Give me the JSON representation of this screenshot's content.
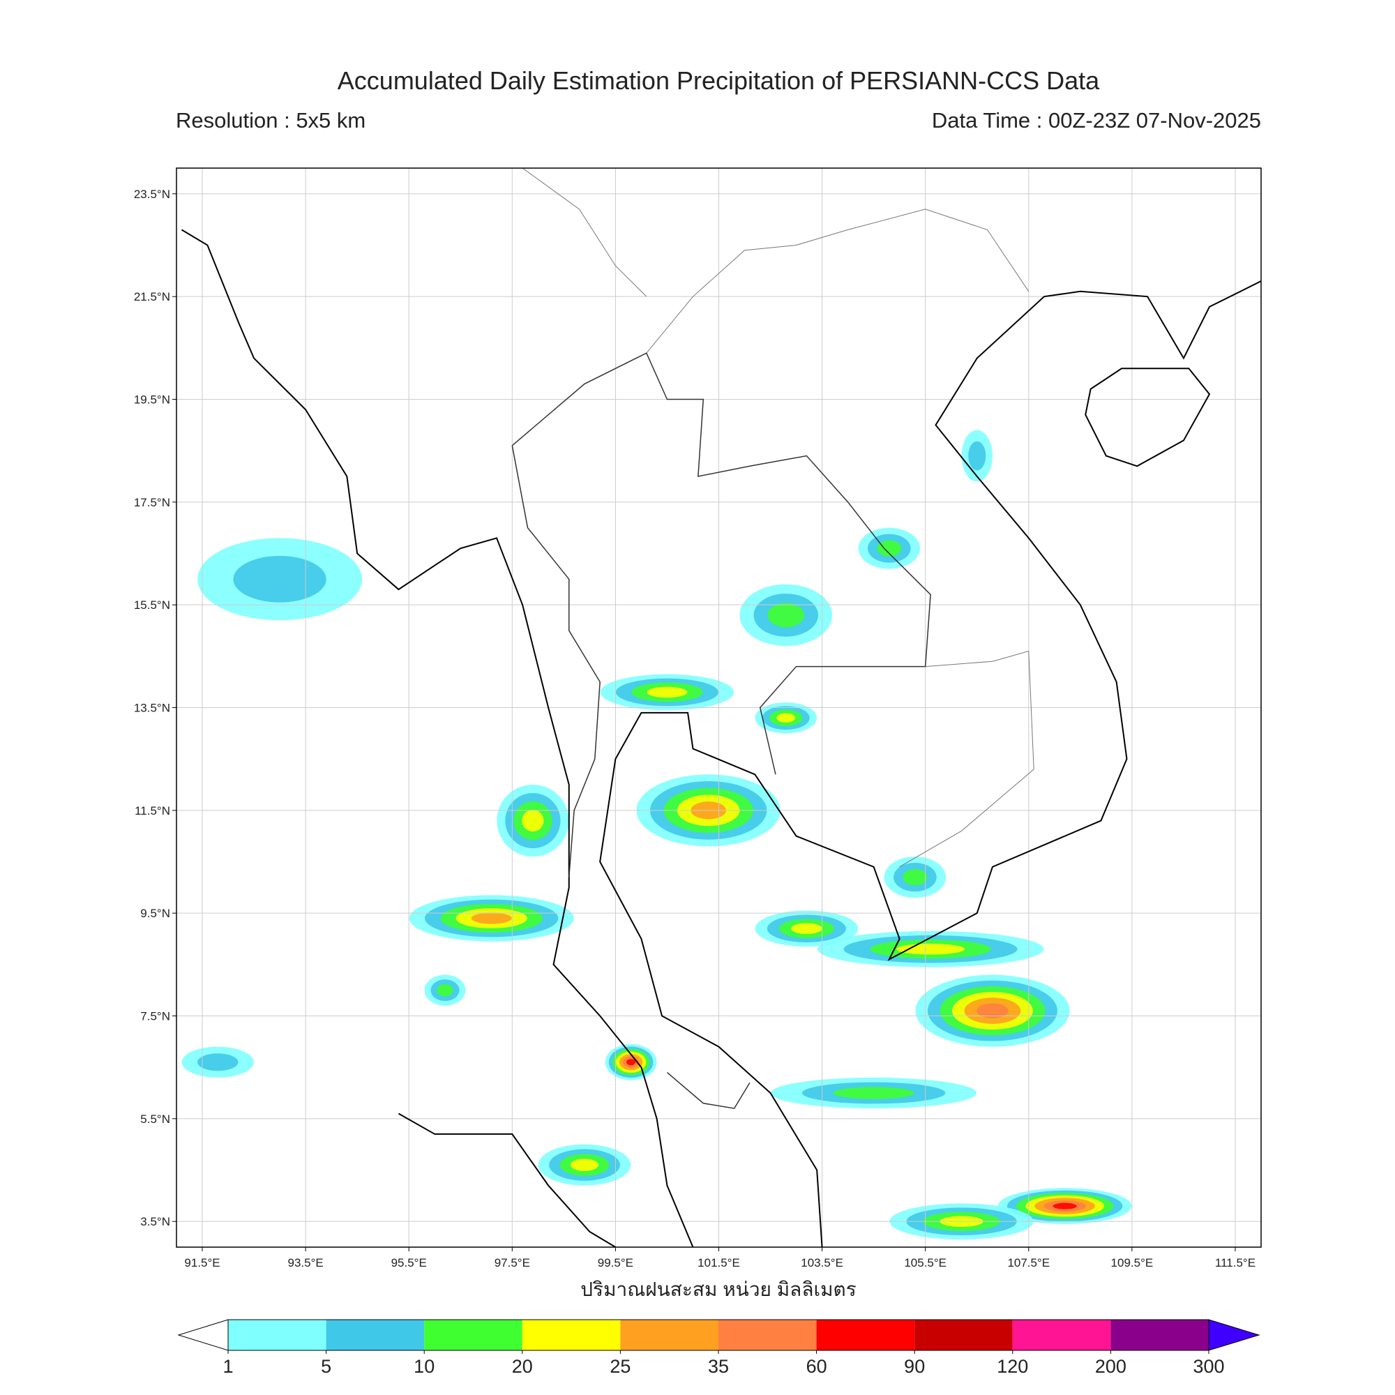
{
  "title": "Accumulated Daily Estimation Precipitation of PERSIANN-CCS Data",
  "resolution": "Resolution : 5x5 km",
  "data_time": "Data Time : 00Z-23Z 07-Nov-2025",
  "map": {
    "lonlim": [
      91,
      112
    ],
    "latlim": [
      3,
      24
    ],
    "grid": true,
    "xticks": [
      {
        "value": 91.5,
        "label": "91.5°E"
      },
      {
        "value": 93.5,
        "label": "93.5°E"
      },
      {
        "value": 95.5,
        "label": "95.5°E"
      },
      {
        "value": 97.5,
        "label": "97.5°E"
      },
      {
        "value": 99.5,
        "label": "99.5°E"
      },
      {
        "value": 101.5,
        "label": "101.5°E"
      },
      {
        "value": 103.5,
        "label": "103.5°E"
      },
      {
        "value": 105.5,
        "label": "105.5°E"
      },
      {
        "value": 107.5,
        "label": "107.5°E"
      },
      {
        "value": 109.5,
        "label": "109.5°E"
      },
      {
        "value": 111.5,
        "label": "111.5°E"
      }
    ],
    "yticks": [
      {
        "value": 3.5,
        "label": "3.5°N"
      },
      {
        "value": 5.5,
        "label": "5.5°N"
      },
      {
        "value": 7.5,
        "label": "7.5°N"
      },
      {
        "value": 9.5,
        "label": "9.5°N"
      },
      {
        "value": 11.5,
        "label": "11.5°N"
      },
      {
        "value": 13.5,
        "label": "13.5°N"
      },
      {
        "value": 15.5,
        "label": "15.5°N"
      },
      {
        "value": 17.5,
        "label": "17.5°N"
      },
      {
        "value": 19.5,
        "label": "19.5°N"
      },
      {
        "value": 21.5,
        "label": "21.5°N"
      },
      {
        "value": 23.5,
        "label": "23.5°N"
      }
    ],
    "xlabel": "ปริมาณฝนสะสม หน่วย มิลลิเมตร"
  },
  "colorbar": {
    "levels": [
      1,
      5,
      10,
      20,
      25,
      35,
      60,
      90,
      120,
      200,
      300
    ],
    "colors": [
      "#80ffff",
      "#40c8e8",
      "#40ff30",
      "#ffff00",
      "#ffa020",
      "#ff8040",
      "#ff0000",
      "#c80000",
      "#ff1493",
      "#8b008b"
    ],
    "under_color": "#ffffff",
    "over_color": "#4000ff"
  }
}
